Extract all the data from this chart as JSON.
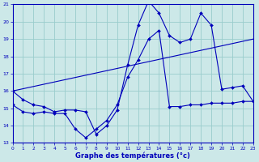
{
  "xlabel": "Graphe des températures (°c)",
  "bg_color": "#cce8e8",
  "line_color": "#0000bb",
  "grid_color": "#99cccc",
  "xmin": 0,
  "xmax": 23,
  "ymin": 13,
  "ymax": 21,
  "yticks": [
    13,
    14,
    15,
    16,
    17,
    18,
    19,
    20,
    21
  ],
  "series1": {
    "x": [
      0,
      1,
      2,
      3,
      4,
      5,
      6,
      7,
      8,
      9,
      10,
      11,
      12,
      13,
      14,
      15,
      16,
      17,
      18,
      19,
      20,
      21,
      22,
      23
    ],
    "y": [
      16.0,
      15.5,
      15.2,
      15.1,
      14.8,
      14.9,
      14.9,
      14.8,
      13.5,
      14.0,
      14.9,
      17.5,
      19.8,
      21.2,
      20.5,
      19.2,
      18.8,
      19.0,
      20.5,
      19.8,
      16.1,
      16.2,
      16.3,
      15.4
    ]
  },
  "series2": {
    "x": [
      0,
      1,
      2,
      3,
      4,
      5,
      6,
      7,
      8,
      9,
      10,
      11,
      12,
      13,
      14,
      15,
      16,
      17,
      18,
      19,
      20,
      21,
      22,
      23
    ],
    "y": [
      15.2,
      14.8,
      14.7,
      14.8,
      14.7,
      14.7,
      13.8,
      13.3,
      13.8,
      14.3,
      15.2,
      16.8,
      17.8,
      19.0,
      19.5,
      15.1,
      15.1,
      15.2,
      15.2,
      15.3,
      15.3,
      15.3,
      15.4,
      15.4
    ]
  },
  "series3": {
    "x": [
      0,
      23
    ],
    "y": [
      16.0,
      19.0
    ]
  }
}
